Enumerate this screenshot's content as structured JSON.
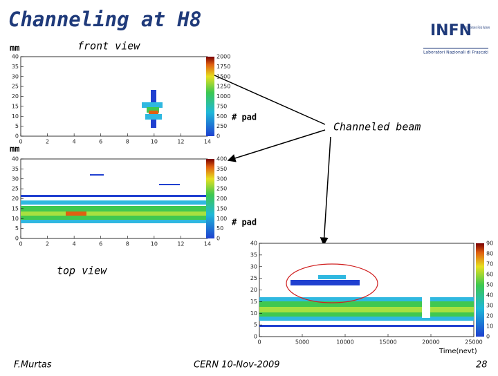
{
  "header": {
    "title": "Channeling at H8",
    "logo": {
      "name": "INFN",
      "subtitle": "Istituto Nazionale di Fisica Nucleare",
      "lab": "Laboratori Nazionali di Frascati"
    }
  },
  "front_view": {
    "label": "front view",
    "y_unit": "mm",
    "x_unit": "# pad",
    "yticks": [
      "0",
      "5",
      "10",
      "15",
      "20",
      "25",
      "30",
      "35",
      "40"
    ],
    "xticks": [
      "0",
      "2",
      "4",
      "6",
      "8",
      "10",
      "12",
      "14"
    ],
    "scale": [
      "0",
      "250",
      "500",
      "750",
      "1000",
      "1250",
      "1500",
      "1750",
      "2000"
    ]
  },
  "top_view": {
    "label": "top view",
    "y_unit": "mm",
    "x_unit": "# pad",
    "yticks": [
      "0",
      "5",
      "10",
      "15",
      "20",
      "25",
      "30",
      "35",
      "40"
    ],
    "xticks": [
      "0",
      "2",
      "4",
      "6",
      "8",
      "10",
      "12",
      "14"
    ],
    "scale": [
      "0",
      "50",
      "100",
      "150",
      "200",
      "250",
      "300",
      "350",
      "400"
    ]
  },
  "time_plot": {
    "label": "Channeled beam",
    "x_unit": "Time(nevt)",
    "yticks": [
      "0",
      "5",
      "10",
      "15",
      "20",
      "25",
      "30",
      "35",
      "40"
    ],
    "xticks": [
      "0",
      "5000",
      "10000",
      "15000",
      "20000",
      "25000"
    ],
    "scale": [
      "0",
      "10",
      "20",
      "30",
      "40",
      "50",
      "60",
      "70",
      "80",
      "90"
    ]
  },
  "footer": {
    "author": "F.Murtas",
    "event": "CERN 10-Nov-2009",
    "page": "28"
  }
}
